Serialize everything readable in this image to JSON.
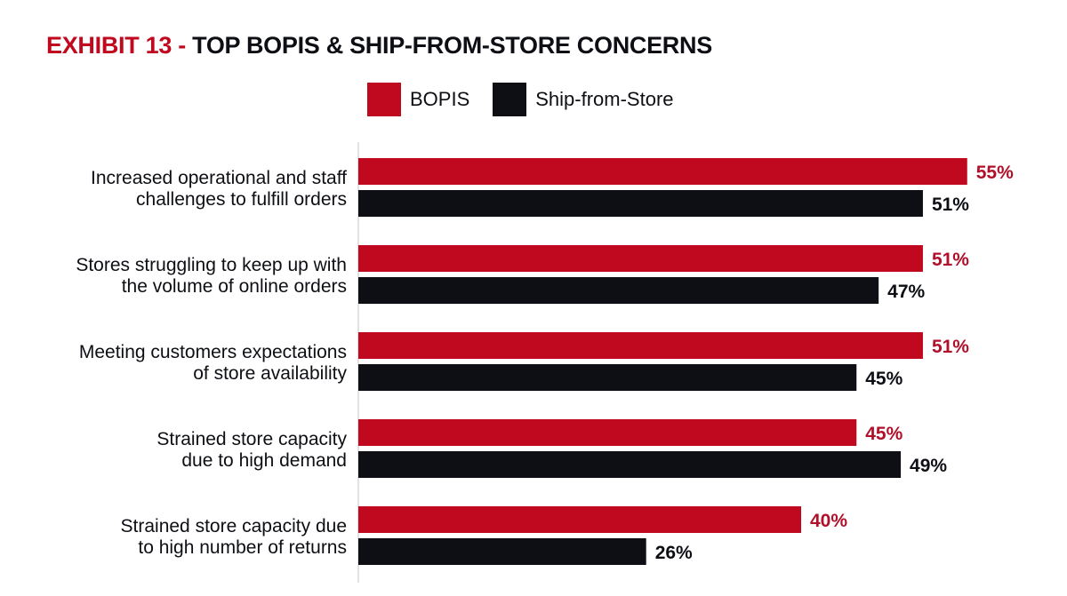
{
  "title": {
    "prefix": "EXHIBIT 13 -",
    "text": "TOP BOPIS & SHIP-FROM-STORE CONCERNS"
  },
  "legend": [
    {
      "label": "BOPIS",
      "color": "#c0091f"
    },
    {
      "label": "Ship-from-Store",
      "color": "#0d0f14"
    }
  ],
  "chart_data": {
    "type": "bar",
    "orientation": "horizontal",
    "grid": false,
    "legend_position": "top",
    "categories": [
      [
        "Increased operational and staff",
        "challenges to fulfill orders"
      ],
      [
        "Stores struggling to keep up with",
        "the volume of online orders"
      ],
      [
        "Meeting customers expectations",
        "of store availability"
      ],
      [
        "Strained store capacity",
        "due to high demand"
      ],
      [
        "Strained store capacity due",
        "to high number of returns"
      ]
    ],
    "series": [
      {
        "name": "BOPIS",
        "color": "#c0091f",
        "label_color": "#b0102a",
        "values": [
          55,
          51,
          51,
          45,
          40
        ],
        "labels": [
          "55%",
          "51%",
          "51%",
          "45%",
          "40%"
        ]
      },
      {
        "name": "Ship-from-Store",
        "color": "#0d0f14",
        "label_color": "#0d0f14",
        "values": [
          51,
          47,
          45,
          49,
          26
        ],
        "labels": [
          "51%",
          "47%",
          "45%",
          "49%",
          "26%"
        ]
      }
    ]
  }
}
